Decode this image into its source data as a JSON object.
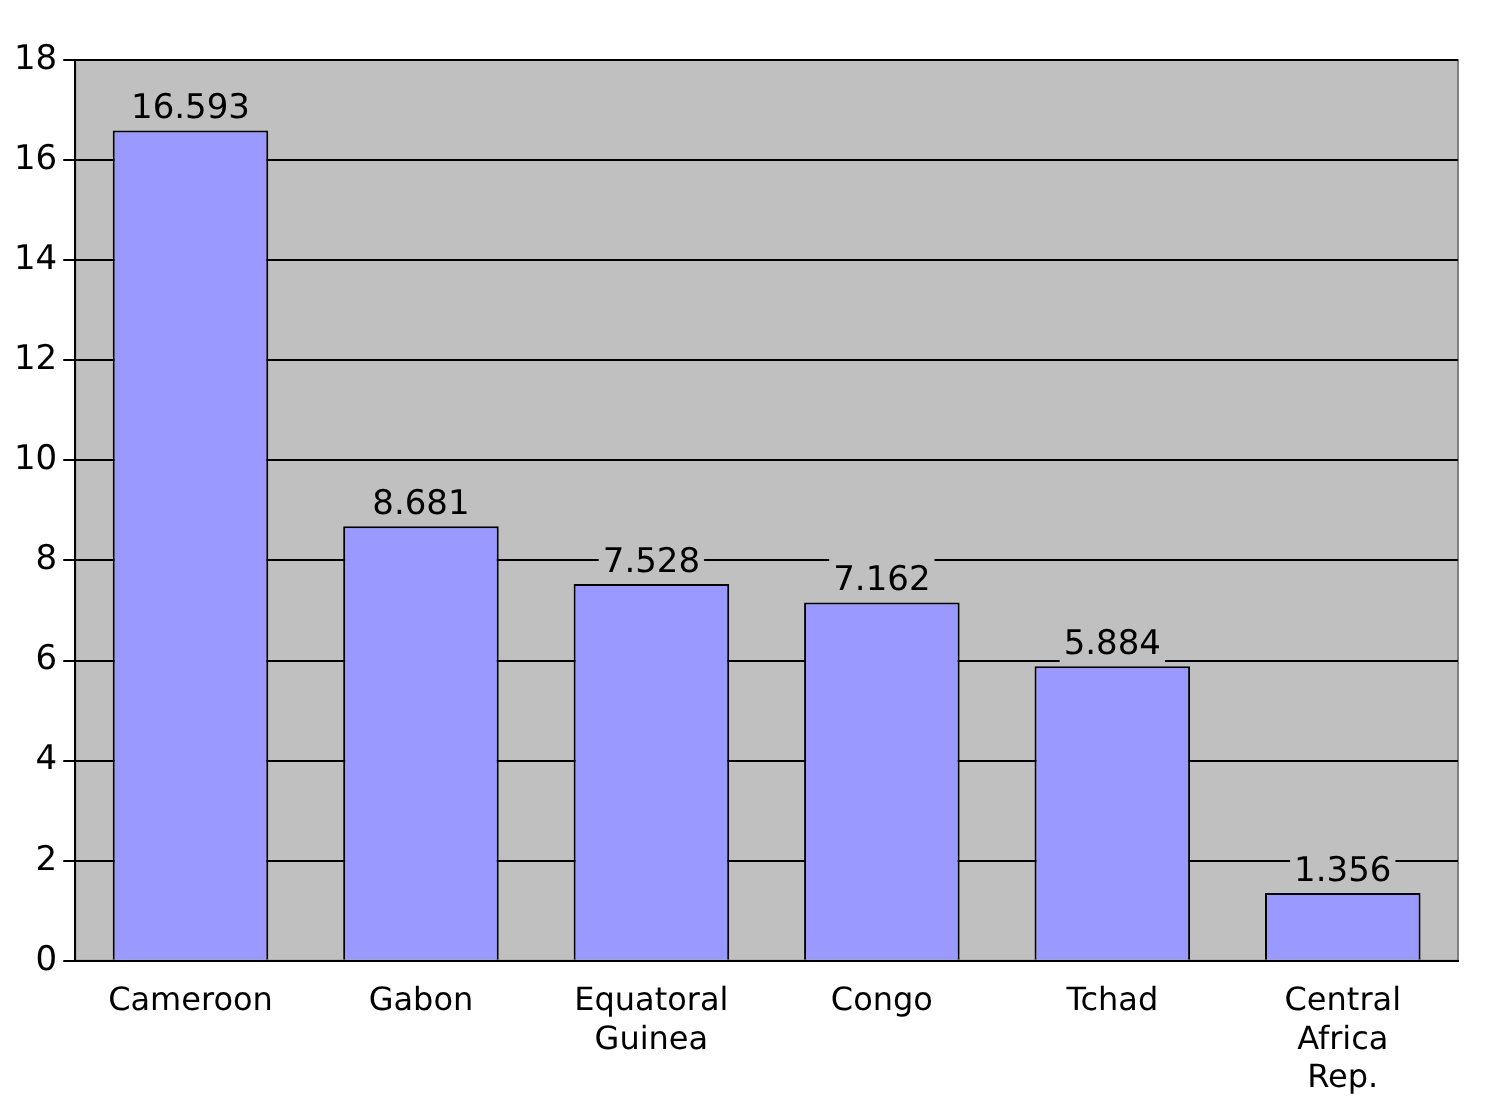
{
  "chart_data": {
    "type": "bar",
    "categories": [
      "Cameroon",
      "Gabon",
      "Equatoral Guinea",
      "Congo",
      "Tchad",
      "Central Africa Rep."
    ],
    "values": [
      16.593,
      8.681,
      7.528,
      7.162,
      5.884,
      1.356
    ],
    "color": "#9999ff",
    "ylim": [
      0,
      18
    ],
    "yticks": [
      0,
      2,
      4,
      6,
      8,
      10,
      12,
      14,
      16,
      18
    ],
    "grid": "y",
    "data_labels": true,
    "legend": false
  }
}
